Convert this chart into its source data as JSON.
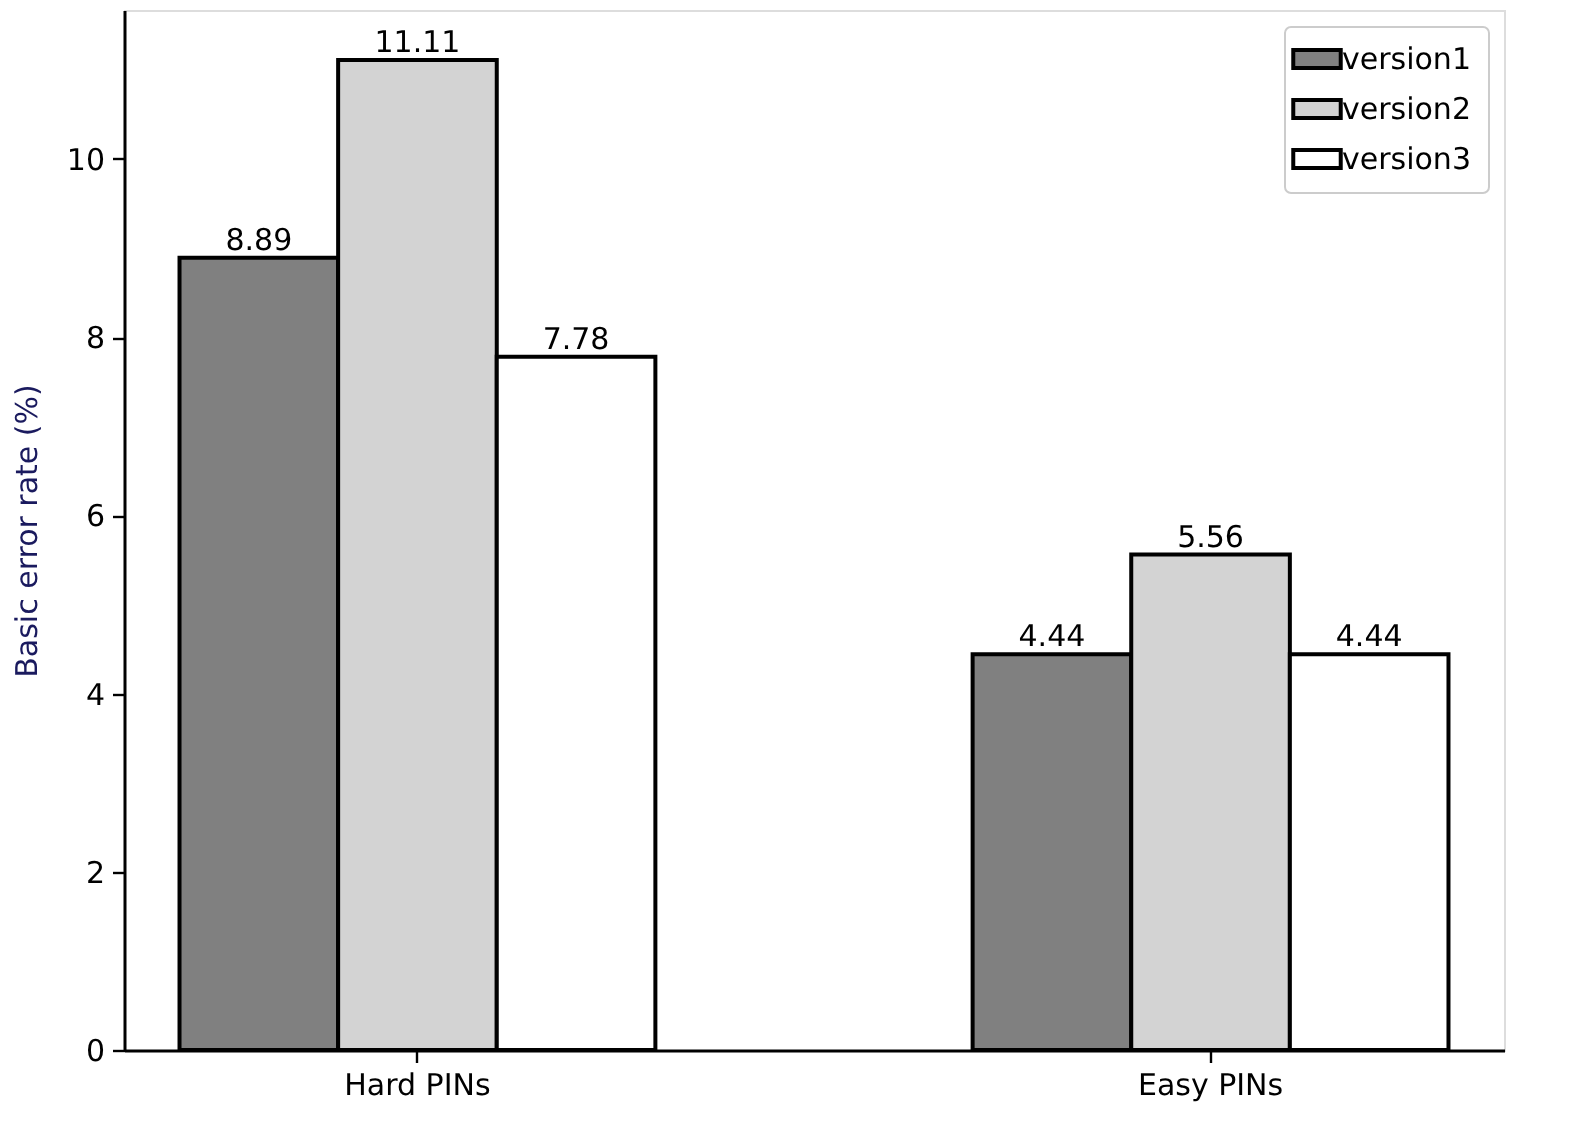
{
  "chart_data": {
    "type": "bar",
    "ylabel": "Basic error rate (%)",
    "categories": [
      "Hard PINs",
      "Easy PINs"
    ],
    "series": [
      {
        "name": "version1",
        "color": "#808080",
        "values": [
          8.89,
          4.44
        ]
      },
      {
        "name": "version2",
        "color": "#d3d3d3",
        "values": [
          11.11,
          5.56
        ]
      },
      {
        "name": "version3",
        "color": "#ffffff",
        "values": [
          7.78,
          4.44
        ]
      }
    ],
    "ylim": [
      0,
      11.67
    ],
    "yticks": [
      0,
      2,
      4,
      6,
      8,
      10
    ],
    "data_labels": true,
    "legend": "top right",
    "grid": false
  }
}
